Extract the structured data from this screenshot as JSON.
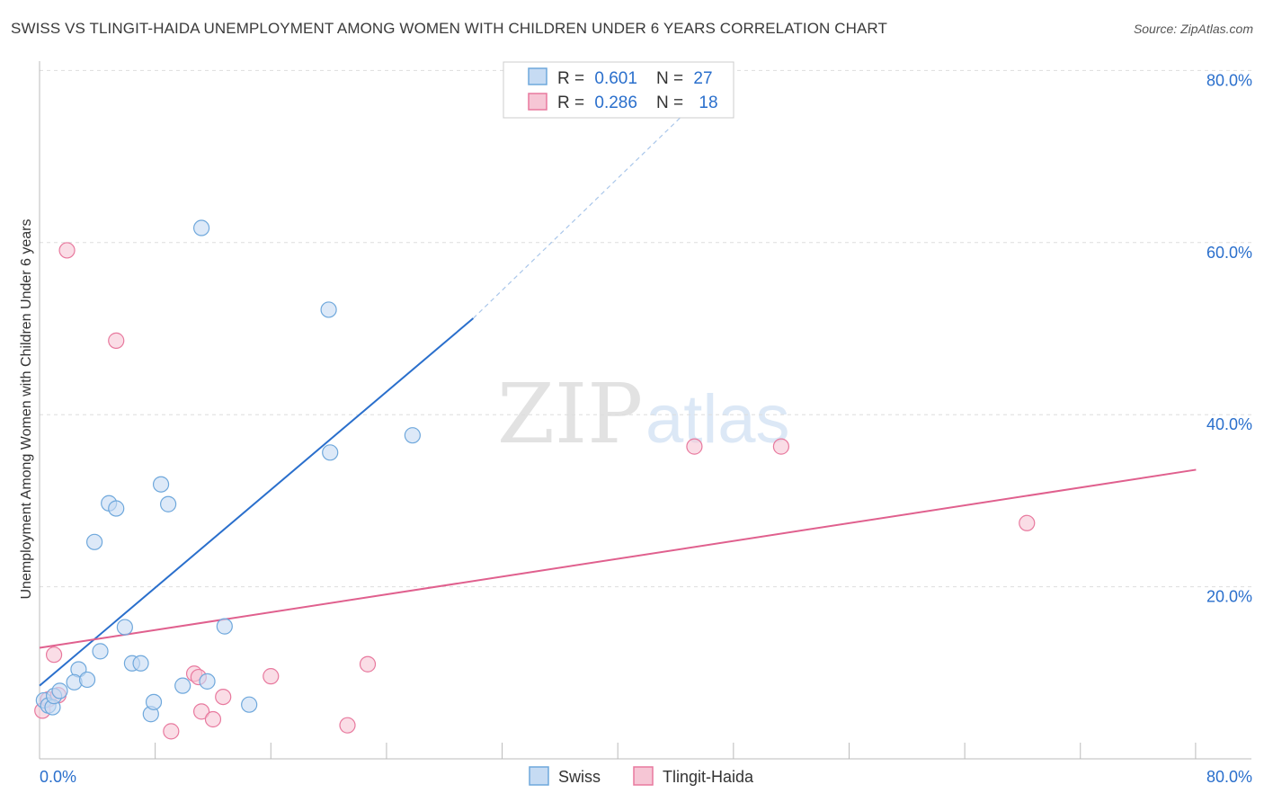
{
  "title": "SWISS VS TLINGIT-HAIDA UNEMPLOYMENT AMONG WOMEN WITH CHILDREN UNDER 6 YEARS CORRELATION CHART",
  "source": "Source: ZipAtlas.com",
  "watermark": {
    "zip": "ZIP",
    "atlas": "atlas"
  },
  "colors": {
    "swiss": "#6fa8dc",
    "swiss_fill": "#c6dbf3",
    "swiss_line": "#2a6fcc",
    "tlingit": "#e8799e",
    "tlingit_fill": "#f6c6d5",
    "tlingit_line": "#e0608e",
    "value_text": "#2a6fcc",
    "grid": "#dddddd"
  },
  "legend_top": {
    "rows": [
      {
        "r_label": "R = ",
        "r_value": "0.601",
        "n_label": "N = ",
        "n_value": "27"
      },
      {
        "r_label": "R = ",
        "r_value": "0.286",
        "n_label": "N = ",
        "n_value": "18"
      }
    ]
  },
  "chart_data": {
    "type": "scatter",
    "title": "SWISS VS TLINGIT-HAIDA UNEMPLOYMENT AMONG WOMEN WITH CHILDREN UNDER 6 YEARS CORRELATION CHART",
    "xlabel": "",
    "ylabel": "Unemployment Among Women with Children Under 6 years",
    "xlim": [
      0,
      84
    ],
    "ylim": [
      0,
      80
    ],
    "x_tick_labels": [
      {
        "value": 0,
        "label": "0.0%"
      },
      {
        "value": 80,
        "label": "80.0%"
      }
    ],
    "y_tick_labels": [
      {
        "value": 20,
        "label": "20.0%"
      },
      {
        "value": 40,
        "label": "40.0%"
      },
      {
        "value": 60,
        "label": "60.0%"
      },
      {
        "value": 80,
        "label": "80.0%"
      }
    ],
    "x_minor_ticks": [
      0,
      8,
      16,
      24,
      32,
      40,
      48,
      56,
      64,
      72,
      80
    ],
    "grid": true,
    "legend_position": "bottom-center",
    "series": [
      {
        "name": "Swiss",
        "r": 0.601,
        "n": 27,
        "points": [
          [
            0.3,
            6.8
          ],
          [
            0.6,
            6.2
          ],
          [
            0.9,
            6.0
          ],
          [
            1.0,
            7.3
          ],
          [
            1.4,
            7.9
          ],
          [
            2.7,
            10.4
          ],
          [
            2.4,
            8.9
          ],
          [
            3.3,
            9.2
          ],
          [
            4.2,
            12.5
          ],
          [
            3.8,
            25.2
          ],
          [
            4.8,
            29.7
          ],
          [
            5.3,
            29.1
          ],
          [
            5.9,
            15.3
          ],
          [
            6.4,
            11.1
          ],
          [
            7.0,
            11.1
          ],
          [
            7.7,
            5.2
          ],
          [
            7.9,
            6.6
          ],
          [
            8.4,
            31.9
          ],
          [
            8.9,
            29.6
          ],
          [
            9.9,
            8.5
          ],
          [
            11.2,
            61.7
          ],
          [
            11.6,
            9.0
          ],
          [
            12.8,
            15.4
          ],
          [
            14.5,
            6.3
          ],
          [
            20.0,
            52.2
          ],
          [
            20.1,
            35.6
          ],
          [
            25.8,
            37.6
          ]
        ],
        "trend": {
          "x": [
            0,
            30
          ],
          "y": [
            8.5,
            51.2
          ],
          "dashed_to": {
            "x": [
              30,
              48
            ],
            "y": [
              51.2,
              80.5
            ]
          }
        }
      },
      {
        "name": "Tlingit-Haida",
        "r": 0.286,
        "n": 18,
        "points": [
          [
            0.2,
            5.6
          ],
          [
            0.6,
            6.9
          ],
          [
            1.0,
            12.1
          ],
          [
            1.3,
            7.4
          ],
          [
            1.9,
            59.1
          ],
          [
            5.3,
            48.6
          ],
          [
            9.1,
            3.2
          ],
          [
            10.7,
            9.9
          ],
          [
            11.0,
            9.5
          ],
          [
            11.2,
            5.5
          ],
          [
            12.0,
            4.6
          ],
          [
            12.7,
            7.2
          ],
          [
            16.0,
            9.6
          ],
          [
            21.3,
            3.9
          ],
          [
            22.7,
            11.0
          ],
          [
            45.3,
            36.3
          ],
          [
            51.3,
            36.3
          ],
          [
            68.3,
            27.4
          ]
        ],
        "trend": {
          "x": [
            0,
            80
          ],
          "y": [
            12.9,
            33.6
          ]
        }
      }
    ]
  }
}
